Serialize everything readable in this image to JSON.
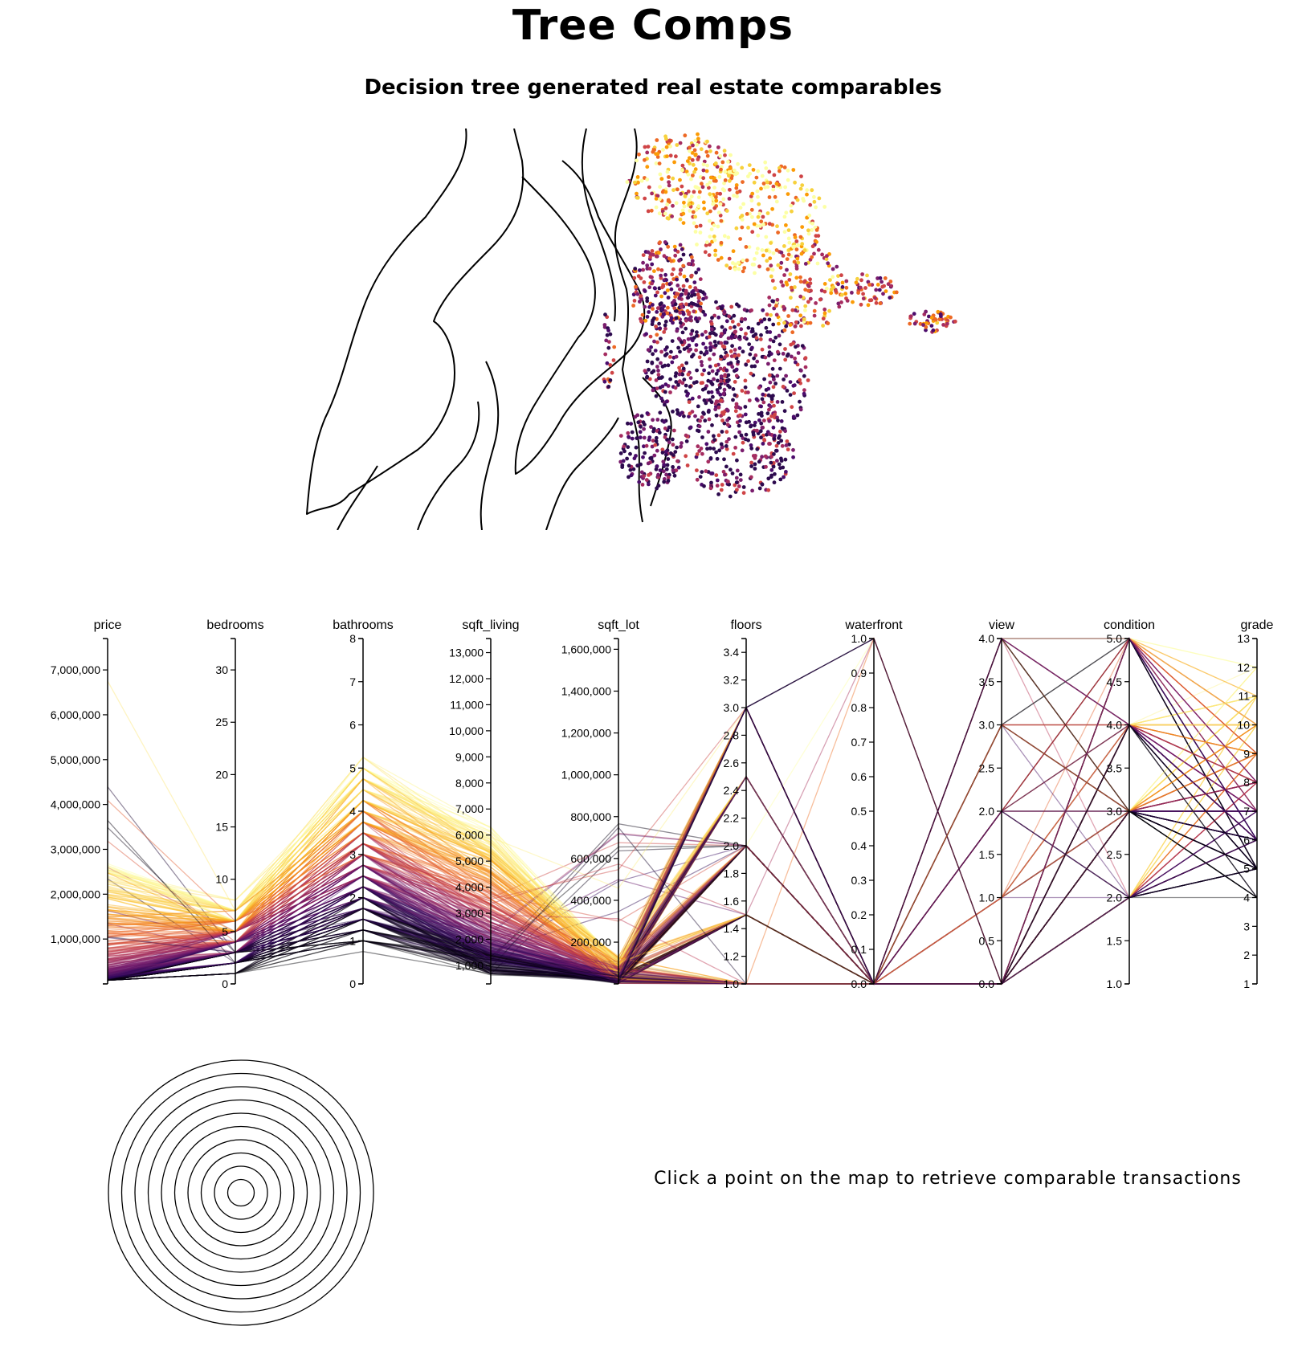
{
  "header": {
    "title": "Tree Comps",
    "subtitle": "Decision tree generated real estate comparables"
  },
  "map": {
    "colors": [
      "#2d0a4e",
      "#4b0c6b",
      "#7a1d6d",
      "#a52c60",
      "#cf4446",
      "#ed6925",
      "#fb9b06",
      "#f7d13d",
      "#fcffa4"
    ]
  },
  "chart_data": {
    "type": "parallel_coordinates",
    "color_scale": [
      "#000004",
      "#320a5e",
      "#781c6d",
      "#bc3754",
      "#ed6925",
      "#fbb61a",
      "#fcffa4"
    ],
    "axes": [
      {
        "name": "price",
        "domain": [
          0,
          7700000
        ],
        "ticks": [
          0,
          1000000,
          2000000,
          3000000,
          4000000,
          5000000,
          6000000,
          7000000
        ],
        "tick_labels": [
          "",
          "1,000,000",
          "2,000,000",
          "3,000,000",
          "4,000,000",
          "5,000,000",
          "6,000,000",
          "7,000,000"
        ]
      },
      {
        "name": "bedrooms",
        "domain": [
          0,
          33
        ],
        "ticks": [
          0,
          5,
          10,
          15,
          20,
          25,
          30
        ],
        "tick_labels": [
          "0",
          "5",
          "10",
          "15",
          "20",
          "25",
          "30"
        ]
      },
      {
        "name": "bathrooms",
        "domain": [
          0,
          8
        ],
        "ticks": [
          0,
          1,
          2,
          3,
          4,
          5,
          6,
          7,
          8
        ],
        "tick_labels": [
          "0",
          "1",
          "2",
          "3",
          "4",
          "5",
          "6",
          "7",
          "8"
        ]
      },
      {
        "name": "sqft_living",
        "domain": [
          290,
          13540
        ],
        "ticks": [
          1000,
          2000,
          3000,
          4000,
          5000,
          6000,
          7000,
          8000,
          9000,
          10000,
          11000,
          12000,
          13000
        ],
        "tick_labels": [
          "1,000",
          "2,000",
          "3,000",
          "4,000",
          "5,000",
          "6,000",
          "7,000",
          "8,000",
          "9,000",
          "10,000",
          "11,000",
          "12,000",
          "13,000"
        ]
      },
      {
        "name": "sqft_lot",
        "domain": [
          520,
          1651359
        ],
        "ticks": [
          200000,
          400000,
          600000,
          800000,
          1000000,
          1200000,
          1400000,
          1600000
        ],
        "tick_labels": [
          "200,000",
          "400,000",
          "600,000",
          "800,000",
          "1,000,000",
          "1,200,000",
          "1,400,000",
          "1,600,000"
        ]
      },
      {
        "name": "floors",
        "domain": [
          1.0,
          3.5
        ],
        "ticks": [
          1.0,
          1.2,
          1.4,
          1.6,
          1.8,
          2.0,
          2.2,
          2.4,
          2.6,
          2.8,
          3.0,
          3.2,
          3.4
        ],
        "tick_labels": [
          "1.0",
          "1.2",
          "1.4",
          "1.6",
          "1.8",
          "2.0",
          "2.2",
          "2.4",
          "2.6",
          "2.8",
          "3.0",
          "3.2",
          "3.4"
        ]
      },
      {
        "name": "waterfront",
        "domain": [
          0.0,
          1.0
        ],
        "ticks": [
          0.0,
          0.1,
          0.2,
          0.3,
          0.4,
          0.5,
          0.6,
          0.7,
          0.8,
          0.9,
          1.0
        ],
        "tick_labels": [
          "0.0",
          "0.1",
          "0.2",
          "0.3",
          "0.4",
          "0.5",
          "0.6",
          "0.7",
          "0.8",
          "0.9",
          "1.0"
        ]
      },
      {
        "name": "view",
        "domain": [
          0.0,
          4.0
        ],
        "ticks": [
          0.0,
          0.5,
          1.0,
          1.5,
          2.0,
          2.5,
          3.0,
          3.5,
          4.0
        ],
        "tick_labels": [
          "0.0",
          "0.5",
          "1.0",
          "1.5",
          "2.0",
          "2.5",
          "3.0",
          "3.5",
          "4.0"
        ]
      },
      {
        "name": "condition",
        "domain": [
          1.0,
          5.0
        ],
        "ticks": [
          1.0,
          1.5,
          2.0,
          2.5,
          3.0,
          3.5,
          4.0,
          4.5,
          5.0
        ],
        "tick_labels": [
          "1.0",
          "1.5",
          "2.0",
          "2.5",
          "3.0",
          "3.5",
          "4.0",
          "4.5",
          "5.0"
        ]
      },
      {
        "name": "grade",
        "domain": [
          1,
          13
        ],
        "ticks": [
          1,
          2,
          3,
          4,
          5,
          6,
          7,
          8,
          9,
          10,
          11,
          12,
          13
        ],
        "tick_labels": [
          "1",
          "2",
          "3",
          "4",
          "5",
          "6",
          "7",
          "8",
          "9",
          "10",
          "11",
          "12",
          "13"
        ]
      }
    ]
  },
  "comparables": {
    "ring_count": 10
  },
  "prompt": {
    "text": "Click a point on the map to retrieve comparable transactions"
  }
}
